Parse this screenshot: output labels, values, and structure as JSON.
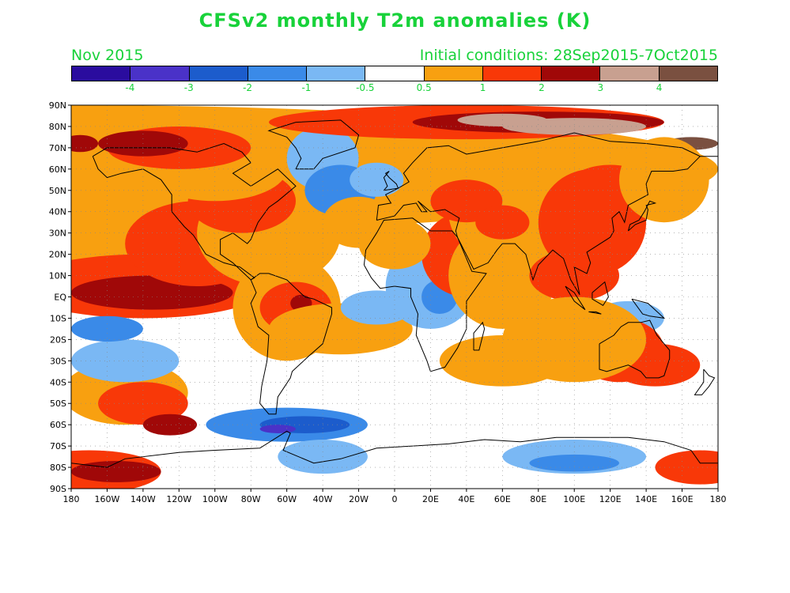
{
  "title": "CFSv2 monthly T2m anomalies (K)",
  "valid_label": "Nov 2015",
  "init_label": "Initial conditions: 28Sep2015-7Oct2015",
  "text_color": "#18d23a",
  "colorbar": {
    "colors": [
      "#2a0c9e",
      "#4a32c8",
      "#1c5ccc",
      "#3a8ae8",
      "#7ab8f4",
      "#ffffff",
      "#f8a010",
      "#f83808",
      "#a00808",
      "#c8a090",
      "#7a5040"
    ],
    "labels": [
      "-4",
      "-3",
      "-2",
      "-1",
      "-0.5",
      "0.5",
      "1",
      "2",
      "3",
      "4"
    ]
  },
  "map": {
    "lat_labels": [
      "90N",
      "80N",
      "70N",
      "60N",
      "50N",
      "40N",
      "30N",
      "20N",
      "10N",
      "EQ",
      "10S",
      "20S",
      "30S",
      "40S",
      "50S",
      "60S",
      "70S",
      "80S",
      "90S"
    ],
    "lon_labels": [
      "180",
      "160W",
      "140W",
      "120W",
      "100W",
      "80W",
      "60W",
      "40W",
      "20W",
      "0",
      "20E",
      "40E",
      "60E",
      "80E",
      "100E",
      "120E",
      "140E",
      "160E",
      "180"
    ],
    "lon_range": [
      -180,
      180
    ],
    "lat_range": [
      -90,
      90
    ],
    "grid": "dotted"
  }
}
